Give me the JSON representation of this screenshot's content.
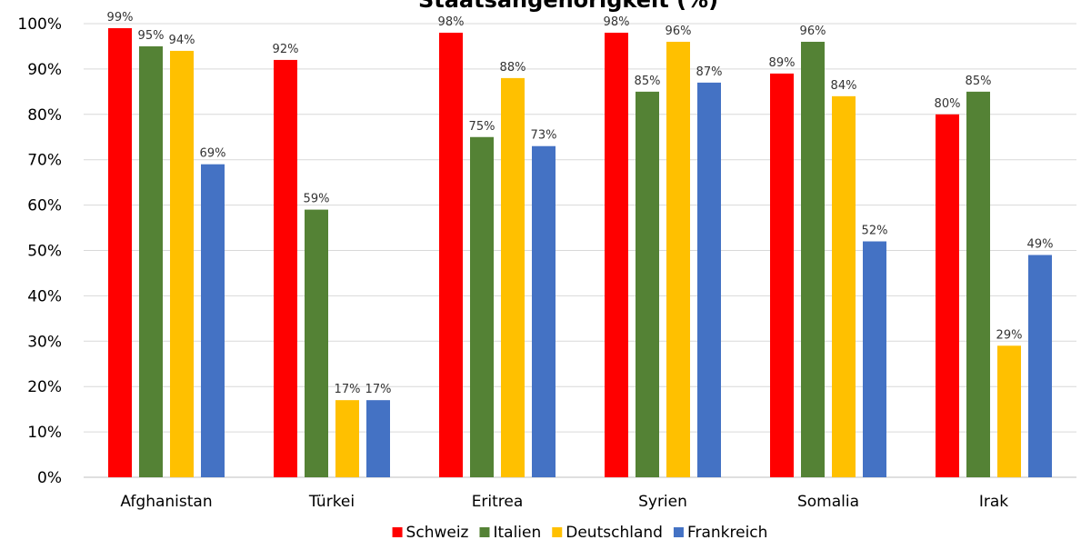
{
  "chart_data": {
    "type": "bar",
    "title": "Staatsangehörigkeit (%)",
    "categories": [
      "Afghanistan",
      "Türkei",
      "Eritrea",
      "Syrien",
      "Somalia",
      "Irak"
    ],
    "series": [
      {
        "name": "Schweiz",
        "color": "#ff0000",
        "values": [
          99,
          92,
          98,
          98,
          89,
          80
        ]
      },
      {
        "name": "Italien",
        "color": "#548235",
        "values": [
          95,
          59,
          75,
          85,
          96,
          85
        ]
      },
      {
        "name": "Deutschland",
        "color": "#ffc000",
        "values": [
          94,
          17,
          88,
          96,
          84,
          29
        ]
      },
      {
        "name": "Frankreich",
        "color": "#4472c4",
        "values": [
          69,
          17,
          73,
          87,
          52,
          49
        ]
      }
    ],
    "value_suffix": "%",
    "ylim": [
      0,
      100
    ],
    "yticks": [
      "0%",
      "10%",
      "20%",
      "30%",
      "40%",
      "50%",
      "60%",
      "70%",
      "80%",
      "90%",
      "100%"
    ],
    "grid": true,
    "legend": "bottom",
    "data_labels": true
  }
}
